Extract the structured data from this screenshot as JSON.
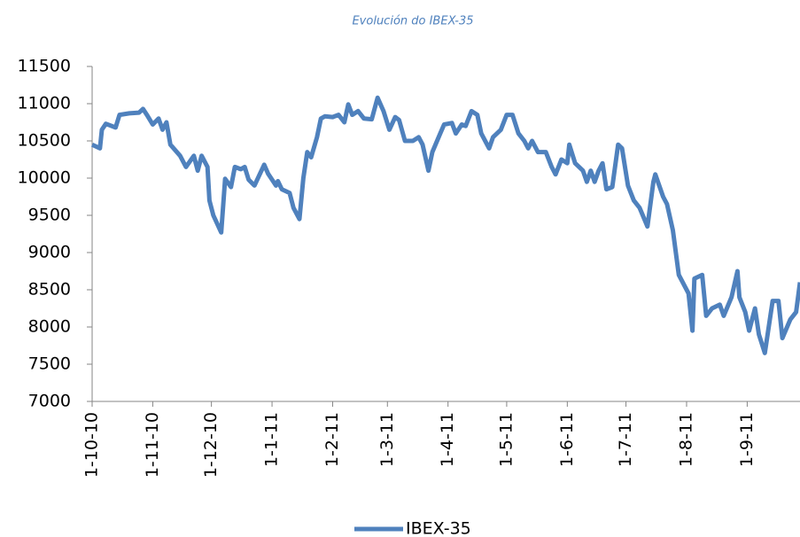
{
  "chart_data": {
    "type": "line",
    "title": "Evolución do IBEX-35",
    "x": [
      "2010-10-01",
      "2010-10-05",
      "2010-10-06",
      "2010-10-08",
      "2010-10-13",
      "2010-10-15",
      "2010-10-20",
      "2010-10-25",
      "2010-10-27",
      "2010-10-29",
      "2010-11-01",
      "2010-11-04",
      "2010-11-06",
      "2010-11-08",
      "2010-11-10",
      "2010-11-15",
      "2010-11-18",
      "2010-11-22",
      "2010-11-24",
      "2010-11-26",
      "2010-11-29",
      "2010-11-30",
      "2010-12-02",
      "2010-12-06",
      "2010-12-08",
      "2010-12-11",
      "2010-12-13",
      "2010-12-16",
      "2010-12-18",
      "2010-12-20",
      "2010-12-23",
      "2010-12-28",
      "2010-12-30",
      "2011-01-03",
      "2011-01-04",
      "2011-01-06",
      "2011-01-10",
      "2011-01-12",
      "2011-01-15",
      "2011-01-17",
      "2011-01-19",
      "2011-01-21",
      "2011-01-24",
      "2011-01-26",
      "2011-01-28",
      "2011-02-01",
      "2011-02-04",
      "2011-02-07",
      "2011-02-09",
      "2011-02-11",
      "2011-02-14",
      "2011-02-17",
      "2011-02-21",
      "2011-02-24",
      "2011-02-27",
      "2011-03-02",
      "2011-03-05",
      "2011-03-07",
      "2011-03-10",
      "2011-03-14",
      "2011-03-17",
      "2011-03-19",
      "2011-03-22",
      "2011-03-24",
      "2011-03-28",
      "2011-03-30",
      "2011-04-03",
      "2011-04-05",
      "2011-04-08",
      "2011-04-10",
      "2011-04-13",
      "2011-04-16",
      "2011-04-18",
      "2011-04-22",
      "2011-04-24",
      "2011-04-28",
      "2011-05-01",
      "2011-05-04",
      "2011-05-07",
      "2011-05-10",
      "2011-05-12",
      "2011-05-14",
      "2011-05-17",
      "2011-05-21",
      "2011-05-24",
      "2011-05-26",
      "2011-05-29",
      "2011-06-01",
      "2011-06-02",
      "2011-06-05",
      "2011-06-09",
      "2011-06-11",
      "2011-06-13",
      "2011-06-15",
      "2011-06-17",
      "2011-06-19",
      "2011-06-21",
      "2011-06-24",
      "2011-06-27",
      "2011-06-29",
      "2011-07-02",
      "2011-07-05",
      "2011-07-08",
      "2011-07-12",
      "2011-07-15",
      "2011-07-16",
      "2011-07-20",
      "2011-07-22",
      "2011-07-25",
      "2011-07-28",
      "2011-08-02",
      "2011-08-04",
      "2011-08-05",
      "2011-08-09",
      "2011-08-11",
      "2011-08-14",
      "2011-08-18",
      "2011-08-20",
      "2011-08-24",
      "2011-08-27",
      "2011-08-28",
      "2011-08-31",
      "2011-09-02",
      "2011-09-05",
      "2011-09-07",
      "2011-09-10",
      "2011-09-14",
      "2011-09-17",
      "2011-09-19",
      "2011-09-23",
      "2011-09-26",
      "2011-09-28"
    ],
    "series": [
      {
        "name": "IBEX-35",
        "color": "#4f81bd",
        "values": [
          10450,
          10400,
          10650,
          10730,
          10680,
          10850,
          10870,
          10880,
          10930,
          10850,
          10720,
          10800,
          10650,
          10750,
          10450,
          10300,
          10150,
          10300,
          10100,
          10300,
          10150,
          9700,
          9500,
          9270,
          9990,
          9880,
          10150,
          10120,
          10150,
          9980,
          9900,
          10180,
          10060,
          9900,
          9960,
          9850,
          9800,
          9600,
          9450,
          10000,
          10350,
          10280,
          10550,
          10800,
          10830,
          10820,
          10850,
          10750,
          10990,
          10850,
          10900,
          10800,
          10790,
          11080,
          10900,
          10650,
          10820,
          10780,
          10500,
          10500,
          10550,
          10450,
          10100,
          10350,
          10600,
          10720,
          10740,
          10600,
          10720,
          10700,
          10900,
          10850,
          10600,
          10400,
          10550,
          10650,
          10850,
          10850,
          10600,
          10500,
          10400,
          10500,
          10350,
          10350,
          10150,
          10050,
          10250,
          10200,
          10450,
          10200,
          10100,
          9950,
          10100,
          9950,
          10100,
          10200,
          9850,
          9880,
          10450,
          10400,
          9900,
          9700,
          9600,
          9350,
          9950,
          10050,
          9750,
          9650,
          9300,
          8700,
          8450,
          7950,
          8650,
          8700,
          8150,
          8250,
          8300,
          8150,
          8400,
          8750,
          8400,
          8200,
          7950,
          8250,
          7900,
          7650,
          8350,
          8350,
          7850,
          8100,
          8200,
          8600
        ]
      }
    ],
    "xlim": [
      "2010-10-01",
      "2011-09-28"
    ],
    "xticks": [
      {
        "value": "2010-10-01",
        "label": "1-10-10"
      },
      {
        "value": "2010-11-01",
        "label": "1-11-10"
      },
      {
        "value": "2010-12-01",
        "label": "1-12-10"
      },
      {
        "value": "2011-01-01",
        "label": "1-1-11"
      },
      {
        "value": "2011-02-01",
        "label": "1-2-11"
      },
      {
        "value": "2011-03-01",
        "label": "1-3-11"
      },
      {
        "value": "2011-04-01",
        "label": "1-4-11"
      },
      {
        "value": "2011-05-01",
        "label": "1-5-11"
      },
      {
        "value": "2011-06-01",
        "label": "1-6-11"
      },
      {
        "value": "2011-07-01",
        "label": "1-7-11"
      },
      {
        "value": "2011-08-01",
        "label": "1-8-11"
      },
      {
        "value": "2011-09-01",
        "label": "1-9-11"
      }
    ],
    "ylim": [
      7000,
      11500
    ],
    "yticks": [
      7000,
      7500,
      8000,
      8500,
      9000,
      9500,
      10000,
      10500,
      11000,
      11500
    ],
    "grid": false,
    "legend": "bottom"
  }
}
